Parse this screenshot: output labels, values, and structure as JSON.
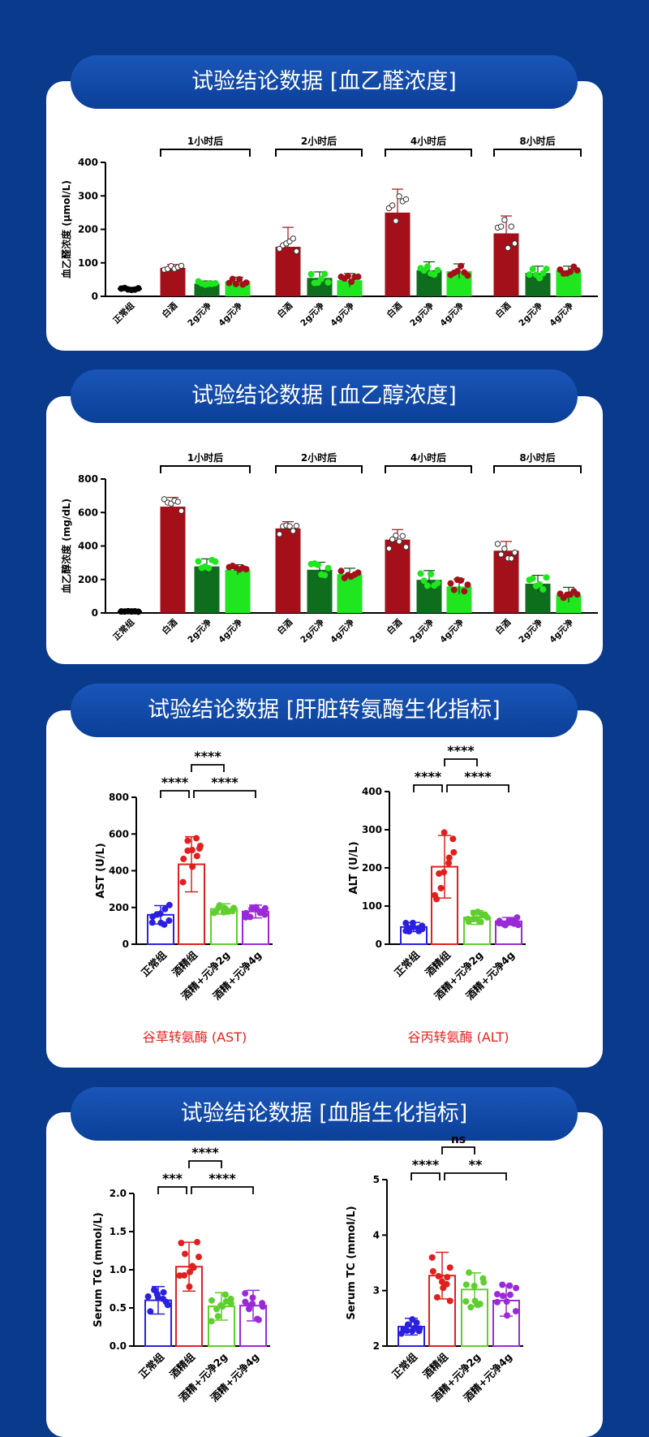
{
  "sections": [
    {
      "title": "试验结论数据 [血乙醛浓度]"
    },
    {
      "title": "试验结论数据 [血乙醇浓度]"
    },
    {
      "title": "试验结论数据 [肝脏转氨酶生化指标]"
    },
    {
      "title": "试验结论数据 [血脂生化指标]"
    }
  ],
  "captions": {
    "ast": "谷草转氨酶 (AST)",
    "alt": "谷丙转氨酶 (ALT)"
  },
  "colors": {
    "dark_red": "#a3101a",
    "dark_green": "#0f6e1e",
    "bright_green": "#1fe61f",
    "blue": "#2b1fe0",
    "red": "#e0201e",
    "green": "#5fcf2f",
    "purple": "#9a2ad8"
  },
  "chart_data": [
    {
      "id": "acetaldehyde",
      "type": "bar",
      "ylabel": "血乙醛浓度 (μmol/L)",
      "ylim": [
        0,
        400
      ],
      "yticks": [
        0,
        100,
        200,
        300,
        400
      ],
      "categories": [
        "正常组",
        "白酒",
        "2g元净",
        "4g元净",
        "白酒",
        "2g元净",
        "4g元净",
        "白酒",
        "2g元净",
        "4g元净",
        "白酒",
        "2g元净",
        "4g元净"
      ],
      "values": [
        22,
        85,
        38,
        45,
        148,
        55,
        48,
        250,
        78,
        75,
        188,
        70,
        78
      ],
      "errors": [
        4,
        10,
        8,
        12,
        58,
        18,
        20,
        70,
        25,
        22,
        52,
        20,
        12
      ],
      "groups": [
        {
          "label": "1小时后",
          "from": 1,
          "to": 3
        },
        {
          "label": "2小时后",
          "from": 4,
          "to": 6
        },
        {
          "label": "4小时后",
          "from": 7,
          "to": 9
        },
        {
          "label": "8小时后",
          "from": 10,
          "to": 12
        }
      ]
    },
    {
      "id": "ethanol",
      "type": "bar",
      "ylabel": "血乙醇浓度 (mg/dL)",
      "ylim": [
        0,
        800
      ],
      "yticks": [
        0,
        200,
        400,
        600,
        800
      ],
      "categories": [
        "正常组",
        "白酒",
        "2g元净",
        "4g元净",
        "白酒",
        "2g元净",
        "4g元净",
        "白酒",
        "2g元净",
        "4g元净",
        "白酒",
        "2g元净",
        "4g元净"
      ],
      "values": [
        8,
        635,
        278,
        258,
        505,
        258,
        232,
        438,
        198,
        158,
        372,
        175,
        108
      ],
      "errors": [
        3,
        55,
        45,
        30,
        40,
        45,
        35,
        60,
        55,
        45,
        55,
        50,
        45
      ],
      "groups": [
        {
          "label": "1小时后",
          "from": 1,
          "to": 3
        },
        {
          "label": "2小时后",
          "from": 4,
          "to": 6
        },
        {
          "label": "4小时后",
          "from": 7,
          "to": 9
        },
        {
          "label": "8小时后",
          "from": 10,
          "to": 12
        }
      ]
    },
    {
      "id": "ast",
      "type": "bar",
      "ylabel": "AST (U/L)",
      "ylim": [
        0,
        800
      ],
      "yticks": [
        0,
        200,
        400,
        600,
        800
      ],
      "categories": [
        "正常组",
        "酒精组",
        "酒精+元净2g",
        "酒精+元净4g"
      ],
      "values": [
        160,
        435,
        192,
        178
      ],
      "errors": [
        50,
        150,
        28,
        35
      ],
      "brackets": [
        {
          "from": 0,
          "to": 1,
          "label": "****",
          "level": 0
        },
        {
          "from": 1,
          "to": 3,
          "label": "****",
          "level": 0
        },
        {
          "from": 1,
          "to": 2,
          "label": "****",
          "level": 1
        }
      ]
    },
    {
      "id": "alt",
      "type": "bar",
      "ylabel": "ALT (U/L)",
      "ylim": [
        0,
        400
      ],
      "yticks": [
        0,
        100,
        200,
        300,
        400
      ],
      "categories": [
        "正常组",
        "酒精组",
        "酒精+元净2g",
        "酒精+元净4g"
      ],
      "values": [
        45,
        203,
        70,
        60
      ],
      "errors": [
        12,
        82,
        18,
        10
      ],
      "brackets": [
        {
          "from": 0,
          "to": 1,
          "label": "****",
          "level": 0
        },
        {
          "from": 1,
          "to": 3,
          "label": "****",
          "level": 0
        },
        {
          "from": 1,
          "to": 2,
          "label": "****",
          "level": 1
        }
      ]
    },
    {
      "id": "tg",
      "type": "bar",
      "ylabel": "Serum TG (mmol/L)",
      "ylim": [
        0,
        2
      ],
      "yticks": [
        "0.0",
        "0.5",
        "1.0",
        "1.5",
        "2.0"
      ],
      "categories": [
        "正常组",
        "酒精组",
        "酒精+元净2g",
        "酒精+元净4g"
      ],
      "values": [
        0.6,
        1.04,
        0.52,
        0.53
      ],
      "errors": [
        0.18,
        0.32,
        0.18,
        0.2
      ],
      "brackets": [
        {
          "from": 0,
          "to": 1,
          "label": "***",
          "level": 0
        },
        {
          "from": 1,
          "to": 3,
          "label": "****",
          "level": 0
        },
        {
          "from": 1,
          "to": 2,
          "label": "****",
          "level": 1
        }
      ]
    },
    {
      "id": "tc",
      "type": "bar",
      "ylabel": "Serum TC (mmol/L)",
      "ylim": [
        2,
        5
      ],
      "yticks": [
        2,
        3,
        4,
        5
      ],
      "categories": [
        "正常组",
        "酒精组",
        "酒精+元净2g",
        "酒精+元净4g"
      ],
      "values": [
        2.35,
        3.27,
        3.02,
        2.82
      ],
      "errors": [
        0.15,
        0.42,
        0.3,
        0.28
      ],
      "brackets": [
        {
          "from": 0,
          "to": 1,
          "label": "****",
          "level": 0
        },
        {
          "from": 1,
          "to": 3,
          "label": "**",
          "level": 0
        },
        {
          "from": 1,
          "to": 2,
          "label": "ns",
          "level": 1
        }
      ]
    }
  ]
}
